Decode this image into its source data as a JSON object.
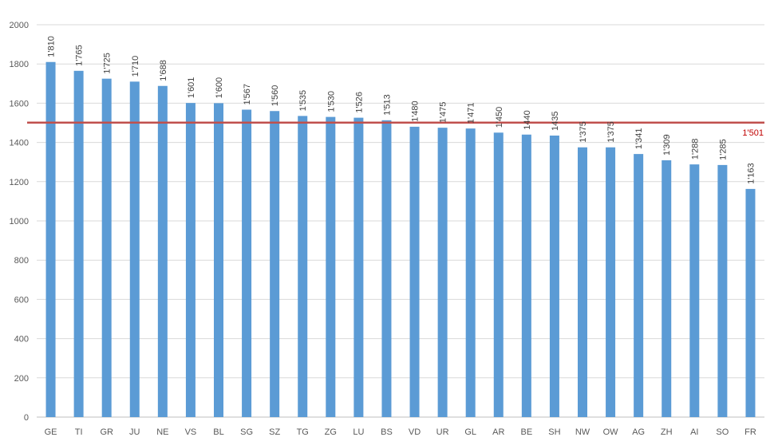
{
  "chart_data": {
    "type": "bar",
    "categories": [
      "GE",
      "TI",
      "GR",
      "JU",
      "NE",
      "VS",
      "BL",
      "SG",
      "SZ",
      "TG",
      "ZG",
      "LU",
      "BS",
      "VD",
      "UR",
      "GL",
      "AR",
      "BE",
      "SH",
      "NW",
      "OW",
      "AG",
      "ZH",
      "AI",
      "SO",
      "FR"
    ],
    "values": [
      1810,
      1765,
      1725,
      1710,
      1688,
      1601,
      1600,
      1567,
      1560,
      1535,
      1530,
      1526,
      1513,
      1480,
      1475,
      1471,
      1450,
      1440,
      1435,
      1375,
      1375,
      1341,
      1309,
      1288,
      1285,
      1163
    ],
    "data_labels": [
      "1'810",
      "1'765",
      "1'725",
      "1'710",
      "1'688",
      "1'601",
      "1'600",
      "1'567",
      "1'560",
      "1'535",
      "1'530",
      "1'526",
      "1'513",
      "1'480",
      "1'475",
      "1'471",
      "1'450",
      "1440",
      "1435",
      "1'375",
      "1'375",
      "1'341",
      "1'309",
      "1'288",
      "1'285",
      "1'163"
    ],
    "ylim": [
      0,
      2000
    ],
    "yticks": [
      0,
      200,
      400,
      600,
      800,
      1000,
      1200,
      1400,
      1600,
      1800,
      2000
    ],
    "reference_line": {
      "value": 1501,
      "label": "1'501",
      "color": "#c0504d"
    },
    "bar_color": "#5b9bd5",
    "grid": true,
    "title": "",
    "xlabel": "",
    "ylabel": ""
  }
}
